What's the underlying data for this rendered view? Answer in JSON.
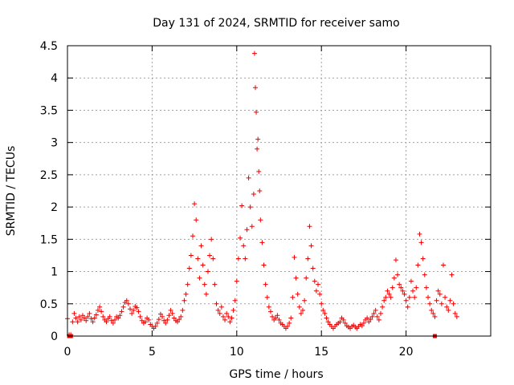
{
  "chart_data": {
    "type": "scatter",
    "title": "Day 131 of 2024, SRMTID for receiver samo",
    "xlabel": "GPS time / hours",
    "ylabel": "SRMTID / TECUs",
    "xlim": [
      0,
      25
    ],
    "ylim": [
      0,
      4.5
    ],
    "x_ticks": [
      0,
      5,
      10,
      15,
      20
    ],
    "x_tick_labels": [
      "0",
      "5",
      "10",
      "15",
      "20"
    ],
    "y_ticks": [
      0,
      0.5,
      1,
      1.5,
      2,
      2.5,
      3,
      3.5,
      4,
      4.5
    ],
    "y_tick_labels": [
      "0",
      "0.5",
      "1",
      "1.5",
      "2",
      "2.5",
      "3",
      "3.5",
      "4",
      "4.5"
    ],
    "grid": true,
    "marker": "plus",
    "series_color": "#ee0000",
    "series": [
      {
        "name": "SRMTID",
        "points": [
          [
            0.0,
            0.27
          ],
          [
            0.1,
            0.02
          ],
          [
            0.2,
            0.02
          ],
          [
            0.3,
            0.22
          ],
          [
            0.4,
            0.35
          ],
          [
            0.5,
            0.28
          ],
          [
            0.6,
            0.22
          ],
          [
            0.7,
            0.3
          ],
          [
            0.8,
            0.25
          ],
          [
            0.9,
            0.32
          ],
          [
            1.0,
            0.28
          ],
          [
            1.1,
            0.24
          ],
          [
            1.2,
            0.3
          ],
          [
            1.3,
            0.35
          ],
          [
            1.4,
            0.27
          ],
          [
            1.5,
            0.22
          ],
          [
            1.6,
            0.28
          ],
          [
            1.7,
            0.33
          ],
          [
            1.8,
            0.4
          ],
          [
            1.9,
            0.45
          ],
          [
            2.0,
            0.38
          ],
          [
            2.1,
            0.3
          ],
          [
            2.2,
            0.25
          ],
          [
            2.3,
            0.22
          ],
          [
            2.4,
            0.27
          ],
          [
            2.5,
            0.3
          ],
          [
            2.6,
            0.24
          ],
          [
            2.7,
            0.2
          ],
          [
            2.8,
            0.25
          ],
          [
            2.9,
            0.3
          ],
          [
            3.0,
            0.28
          ],
          [
            3.1,
            0.32
          ],
          [
            3.2,
            0.38
          ],
          [
            3.3,
            0.45
          ],
          [
            3.4,
            0.52
          ],
          [
            3.5,
            0.55
          ],
          [
            3.6,
            0.5
          ],
          [
            3.7,
            0.42
          ],
          [
            3.8,
            0.35
          ],
          [
            3.9,
            0.4
          ],
          [
            4.0,
            0.46
          ],
          [
            4.1,
            0.44
          ],
          [
            4.2,
            0.38
          ],
          [
            4.3,
            0.3
          ],
          [
            4.4,
            0.24
          ],
          [
            4.5,
            0.2
          ],
          [
            4.6,
            0.22
          ],
          [
            4.7,
            0.28
          ],
          [
            4.8,
            0.25
          ],
          [
            4.9,
            0.18
          ],
          [
            5.0,
            0.15
          ],
          [
            5.1,
            0.12
          ],
          [
            5.2,
            0.15
          ],
          [
            5.3,
            0.2
          ],
          [
            5.4,
            0.26
          ],
          [
            5.5,
            0.34
          ],
          [
            5.6,
            0.3
          ],
          [
            5.7,
            0.24
          ],
          [
            5.8,
            0.2
          ],
          [
            5.9,
            0.25
          ],
          [
            6.0,
            0.32
          ],
          [
            6.1,
            0.4
          ],
          [
            6.2,
            0.35
          ],
          [
            6.3,
            0.28
          ],
          [
            6.4,
            0.24
          ],
          [
            6.5,
            0.22
          ],
          [
            6.6,
            0.26
          ],
          [
            6.7,
            0.3
          ],
          [
            6.8,
            0.4
          ],
          [
            6.9,
            0.55
          ],
          [
            7.0,
            0.65
          ],
          [
            7.1,
            0.8
          ],
          [
            7.2,
            1.05
          ],
          [
            7.3,
            1.25
          ],
          [
            7.4,
            1.55
          ],
          [
            7.5,
            2.05
          ],
          [
            7.6,
            1.8
          ],
          [
            7.7,
            1.2
          ],
          [
            7.8,
            0.9
          ],
          [
            7.9,
            1.4
          ],
          [
            8.0,
            1.1
          ],
          [
            8.1,
            0.8
          ],
          [
            8.2,
            0.65
          ],
          [
            8.3,
            1.0
          ],
          [
            8.4,
            1.25
          ],
          [
            8.5,
            1.5
          ],
          [
            8.6,
            1.2
          ],
          [
            8.7,
            0.8
          ],
          [
            8.8,
            0.5
          ],
          [
            8.9,
            0.4
          ],
          [
            9.0,
            0.35
          ],
          [
            9.1,
            0.45
          ],
          [
            9.2,
            0.3
          ],
          [
            9.3,
            0.25
          ],
          [
            9.4,
            0.35
          ],
          [
            9.5,
            0.3
          ],
          [
            9.6,
            0.22
          ],
          [
            9.7,
            0.28
          ],
          [
            9.8,
            0.4
          ],
          [
            9.9,
            0.55
          ],
          [
            10.0,
            0.85
          ],
          [
            10.1,
            1.2
          ],
          [
            10.2,
            1.52
          ],
          [
            10.3,
            2.02
          ],
          [
            10.4,
            1.4
          ],
          [
            10.5,
            1.2
          ],
          [
            10.6,
            1.65
          ],
          [
            10.7,
            2.45
          ],
          [
            10.8,
            2.0
          ],
          [
            10.9,
            1.7
          ],
          [
            11.0,
            2.2
          ],
          [
            11.05,
            4.38
          ],
          [
            11.1,
            3.85
          ],
          [
            11.15,
            3.47
          ],
          [
            11.2,
            2.9
          ],
          [
            11.25,
            3.05
          ],
          [
            11.3,
            2.55
          ],
          [
            11.35,
            2.25
          ],
          [
            11.4,
            1.8
          ],
          [
            11.5,
            1.45
          ],
          [
            11.6,
            1.1
          ],
          [
            11.7,
            0.8
          ],
          [
            11.8,
            0.6
          ],
          [
            11.9,
            0.45
          ],
          [
            12.0,
            0.38
          ],
          [
            12.1,
            0.3
          ],
          [
            12.2,
            0.25
          ],
          [
            12.3,
            0.28
          ],
          [
            12.4,
            0.32
          ],
          [
            12.5,
            0.25
          ],
          [
            12.6,
            0.2
          ],
          [
            12.7,
            0.18
          ],
          [
            12.8,
            0.15
          ],
          [
            12.9,
            0.12
          ],
          [
            13.0,
            0.15
          ],
          [
            13.1,
            0.2
          ],
          [
            13.2,
            0.28
          ],
          [
            13.3,
            0.6
          ],
          [
            13.4,
            1.22
          ],
          [
            13.5,
            0.9
          ],
          [
            13.6,
            0.65
          ],
          [
            13.7,
            0.45
          ],
          [
            13.8,
            0.35
          ],
          [
            13.9,
            0.4
          ],
          [
            14.0,
            0.55
          ],
          [
            14.1,
            0.9
          ],
          [
            14.2,
            1.2
          ],
          [
            14.3,
            1.7
          ],
          [
            14.4,
            1.4
          ],
          [
            14.5,
            1.05
          ],
          [
            14.6,
            0.85
          ],
          [
            14.7,
            0.7
          ],
          [
            14.8,
            0.8
          ],
          [
            14.9,
            0.65
          ],
          [
            15.0,
            0.5
          ],
          [
            15.1,
            0.4
          ],
          [
            15.2,
            0.35
          ],
          [
            15.3,
            0.28
          ],
          [
            15.4,
            0.22
          ],
          [
            15.5,
            0.18
          ],
          [
            15.6,
            0.15
          ],
          [
            15.7,
            0.12
          ],
          [
            15.8,
            0.15
          ],
          [
            15.9,
            0.18
          ],
          [
            16.0,
            0.2
          ],
          [
            16.1,
            0.22
          ],
          [
            16.2,
            0.28
          ],
          [
            16.3,
            0.25
          ],
          [
            16.4,
            0.2
          ],
          [
            16.5,
            0.16
          ],
          [
            16.6,
            0.14
          ],
          [
            16.7,
            0.12
          ],
          [
            16.8,
            0.15
          ],
          [
            16.9,
            0.17
          ],
          [
            17.0,
            0.14
          ],
          [
            17.1,
            0.12
          ],
          [
            17.2,
            0.15
          ],
          [
            17.3,
            0.18
          ],
          [
            17.4,
            0.16
          ],
          [
            17.5,
            0.2
          ],
          [
            17.6,
            0.25
          ],
          [
            17.7,
            0.28
          ],
          [
            17.8,
            0.22
          ],
          [
            17.9,
            0.26
          ],
          [
            18.0,
            0.3
          ],
          [
            18.1,
            0.35
          ],
          [
            18.2,
            0.4
          ],
          [
            18.3,
            0.3
          ],
          [
            18.4,
            0.25
          ],
          [
            18.5,
            0.35
          ],
          [
            18.6,
            0.45
          ],
          [
            18.7,
            0.55
          ],
          [
            18.8,
            0.6
          ],
          [
            18.9,
            0.7
          ],
          [
            19.0,
            0.65
          ],
          [
            19.1,
            0.6
          ],
          [
            19.2,
            0.75
          ],
          [
            19.3,
            0.9
          ],
          [
            19.4,
            1.18
          ],
          [
            19.5,
            0.95
          ],
          [
            19.6,
            0.8
          ],
          [
            19.7,
            0.75
          ],
          [
            19.8,
            0.7
          ],
          [
            19.9,
            0.65
          ],
          [
            20.0,
            0.55
          ],
          [
            20.1,
            0.45
          ],
          [
            20.2,
            0.6
          ],
          [
            20.3,
            0.85
          ],
          [
            20.4,
            0.7
          ],
          [
            20.5,
            0.6
          ],
          [
            20.6,
            0.75
          ],
          [
            20.7,
            1.1
          ],
          [
            20.8,
            1.58
          ],
          [
            20.9,
            1.45
          ],
          [
            21.0,
            1.2
          ],
          [
            21.1,
            0.95
          ],
          [
            21.2,
            0.75
          ],
          [
            21.3,
            0.6
          ],
          [
            21.4,
            0.5
          ],
          [
            21.5,
            0.4
          ],
          [
            21.6,
            0.35
          ],
          [
            21.7,
            0.3
          ],
          [
            21.8,
            0.55
          ],
          [
            21.9,
            0.7
          ],
          [
            22.0,
            0.65
          ],
          [
            22.1,
            0.5
          ],
          [
            22.2,
            1.1
          ],
          [
            22.3,
            0.6
          ],
          [
            22.4,
            0.45
          ],
          [
            22.5,
            0.4
          ],
          [
            22.6,
            0.55
          ],
          [
            22.7,
            0.95
          ],
          [
            22.8,
            0.5
          ],
          [
            22.9,
            0.35
          ],
          [
            23.0,
            0.3
          ]
        ]
      }
    ],
    "gap_markers": [
      [
        0.1,
        0
      ],
      [
        0.2,
        0
      ],
      [
        21.7,
        0
      ]
    ]
  }
}
